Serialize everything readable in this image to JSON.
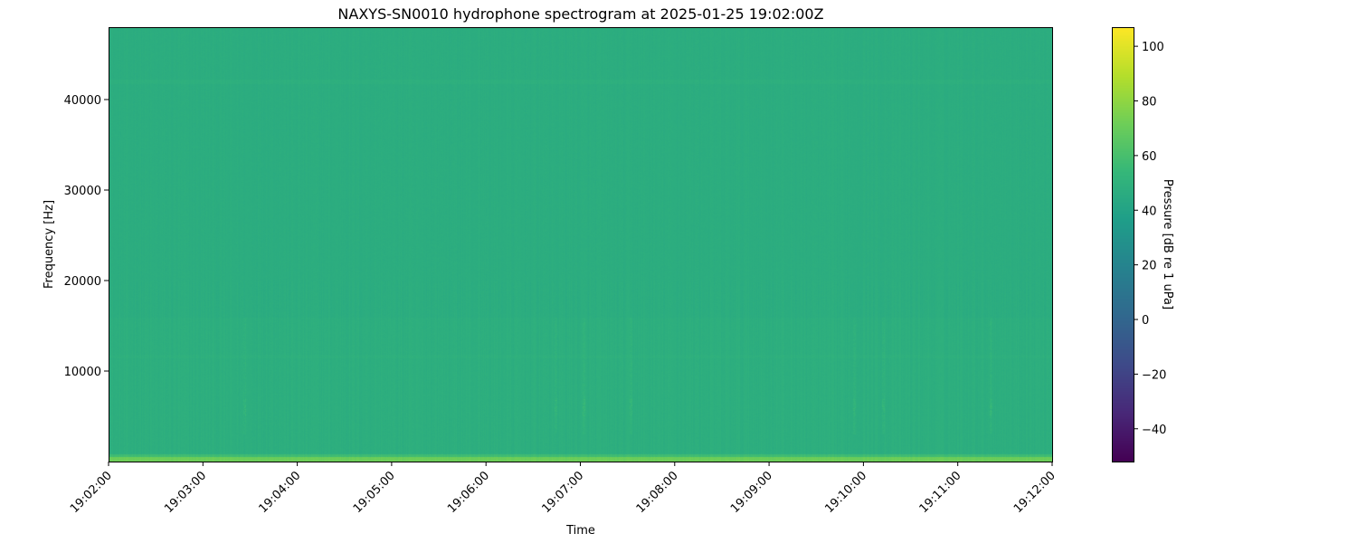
{
  "chart_data": {
    "type": "heatmap",
    "title": "NAXYS-SN0010 hydrophone spectrogram at 2025-01-25 19:02:00Z",
    "xlabel": "Time",
    "ylabel": "Frequency [Hz]",
    "xlim": [
      "19:02:00",
      "19:12:00"
    ],
    "ylim": [
      0,
      48000
    ],
    "x_ticks": [
      "19:02:00",
      "19:03:00",
      "19:04:00",
      "19:05:00",
      "19:06:00",
      "19:07:00",
      "19:08:00",
      "19:09:00",
      "19:10:00",
      "19:11:00",
      "19:12:00"
    ],
    "y_ticks": [
      10000,
      20000,
      30000,
      40000
    ],
    "colormap": "viridis",
    "colorbar": {
      "label": "Pressure [dB re 1 uPa]",
      "range": [
        -52,
        107
      ],
      "ticks": [
        -40,
        -20,
        0,
        20,
        40,
        60,
        80,
        100
      ]
    },
    "typical_level_db": 47,
    "low_frequency_band_db": 70,
    "grid": false
  }
}
